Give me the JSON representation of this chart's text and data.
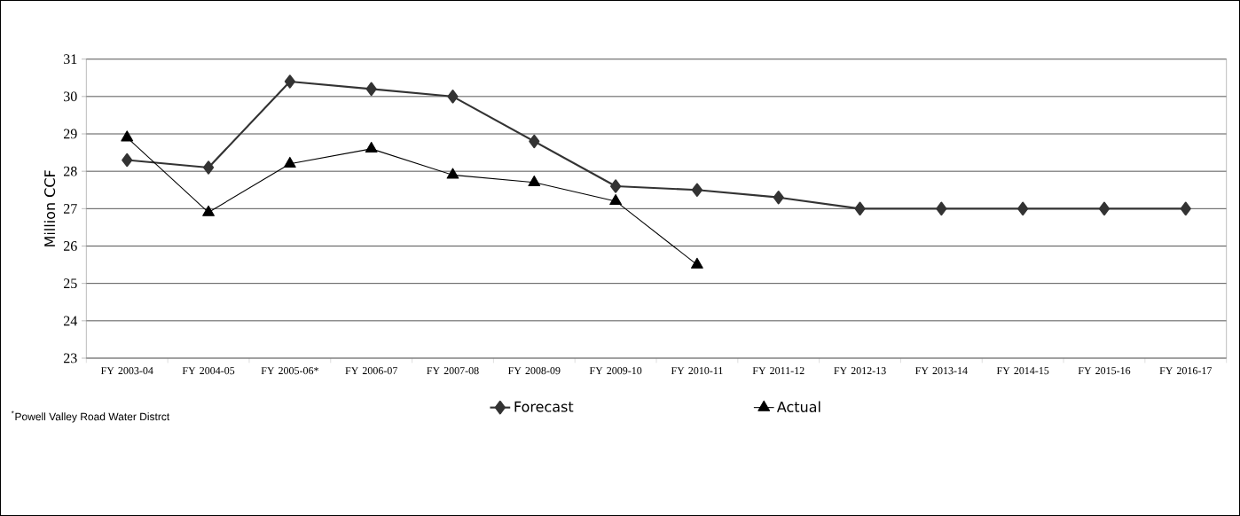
{
  "chart_data": {
    "type": "line",
    "categories": [
      "FY 2003-04",
      "FY 2004-05",
      "FY 2005-06*",
      "FY 2006-07",
      "FY 2007-08",
      "FY 2008-09",
      "FY 2009-10",
      "FY 2010-11",
      "FY 2011-12",
      "FY 2012-13",
      "FY 2013-14",
      "FY 2014-15",
      "FY 2015-16",
      "FY 2016-17"
    ],
    "series": [
      {
        "name": "Forecast",
        "color": "#333333",
        "marker": "diamond",
        "values": [
          28.3,
          28.1,
          30.4,
          30.2,
          30.0,
          28.8,
          27.6,
          27.5,
          27.3,
          27,
          27,
          27,
          27,
          27
        ]
      },
      {
        "name": "Actual",
        "color": "#000000",
        "marker": "triangle",
        "values": [
          28.9,
          26.9,
          28.2,
          28.6,
          27.9,
          27.7,
          27.2,
          25.5,
          null,
          null,
          null,
          null,
          null,
          null
        ]
      }
    ],
    "ylabel": "Million CCF",
    "ylim": [
      23,
      31
    ],
    "yticks": [
      23,
      24,
      25,
      26,
      27,
      28,
      29,
      30,
      31
    ],
    "grid": "y",
    "legend": "bottom",
    "line_style": "solid",
    "annotations": [
      "$^{*}$Powell Valley Road Water Distrct"
    ]
  }
}
